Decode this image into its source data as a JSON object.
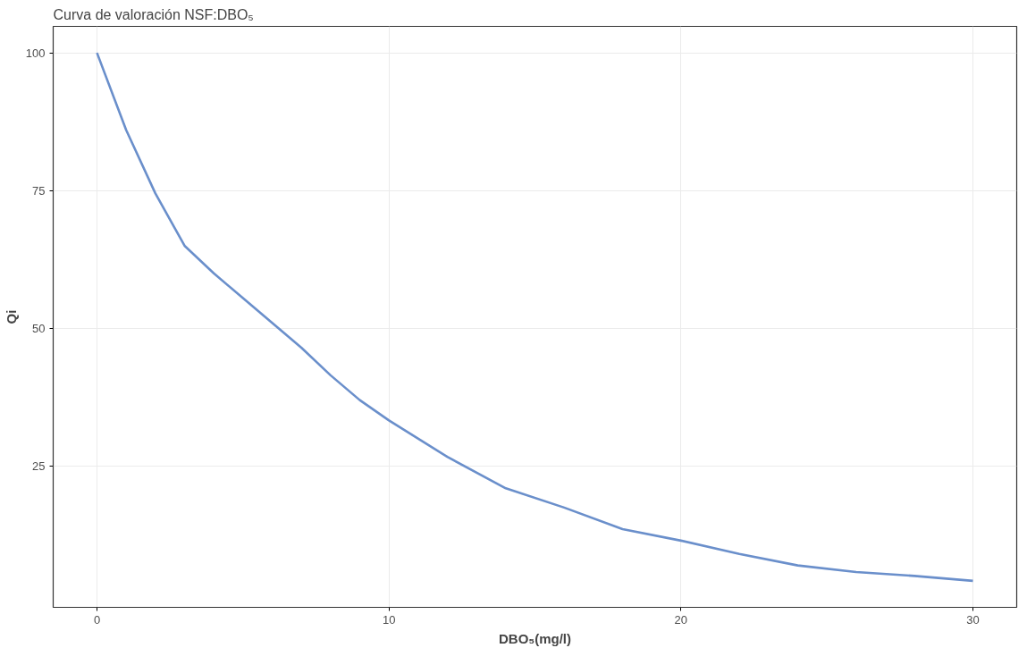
{
  "chart_data": {
    "type": "line",
    "title": "Curva de valoración NSF:DBO₅",
    "xlabel": "DBO₅(mg/l)",
    "ylabel": "Qi",
    "x": [
      0,
      1,
      2,
      3,
      4,
      5,
      6,
      7,
      8,
      9,
      10,
      12,
      14,
      16,
      18,
      20,
      22,
      24,
      26,
      28,
      30
    ],
    "series": [
      {
        "color": "#6a8fcb",
        "values": [
          100,
          86,
          74.5,
          65,
          60,
          55.5,
          51,
          46.5,
          41.5,
          37,
          33.3,
          26.7,
          21,
          17.5,
          13.6,
          11.5,
          9.1,
          7,
          5.8,
          5.1,
          4.2
        ]
      }
    ],
    "xlim": [
      -1.5,
      31.5
    ],
    "ylim": [
      -0.6,
      104.8
    ],
    "xticks": [
      0,
      10,
      20,
      30
    ],
    "yticks": [
      25,
      50,
      75,
      100
    ],
    "grid": true,
    "marker": "none",
    "line_style": "solid"
  }
}
